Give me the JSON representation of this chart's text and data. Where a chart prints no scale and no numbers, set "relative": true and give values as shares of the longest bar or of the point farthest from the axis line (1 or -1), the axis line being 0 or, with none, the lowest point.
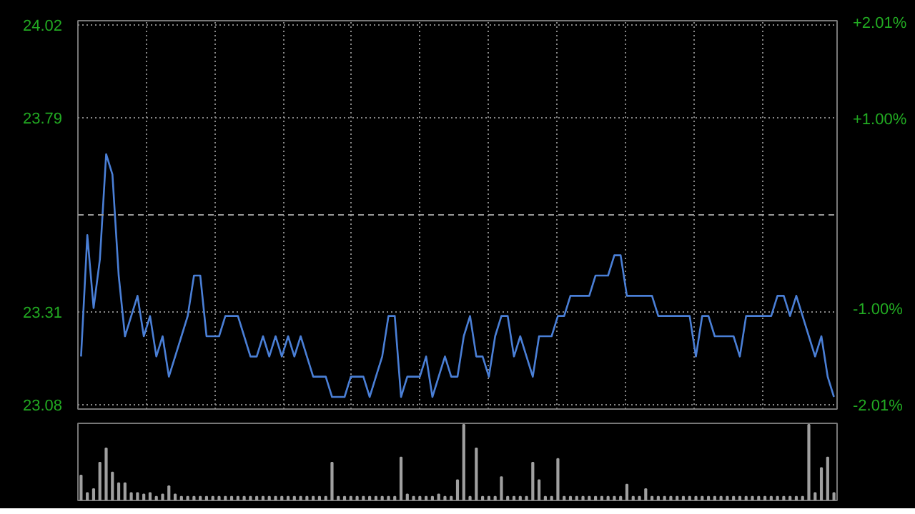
{
  "chart_data": [
    {
      "type": "line",
      "categories": [
        null,
        null,
        null,
        null,
        null,
        null,
        null,
        null,
        null,
        null,
        null,
        null,
        null,
        null,
        null,
        null,
        null,
        null,
        null,
        null,
        null,
        null,
        null,
        null,
        null,
        null,
        null,
        null,
        null,
        null,
        null,
        null,
        null,
        null,
        null,
        null,
        null,
        null,
        null,
        null,
        null,
        null,
        null,
        null,
        null,
        null,
        null,
        null,
        null,
        null,
        null,
        null,
        null,
        null,
        null,
        null,
        null,
        null,
        null,
        null,
        null,
        null,
        null,
        null,
        null,
        null,
        null,
        null,
        null,
        null,
        null,
        null,
        null,
        null,
        null,
        null,
        null,
        null,
        null,
        null,
        null,
        null,
        null,
        null,
        null,
        null,
        null,
        null,
        null,
        null,
        null,
        null,
        null,
        null,
        null,
        null,
        null,
        null,
        null,
        null,
        null,
        null,
        null,
        null,
        null,
        null,
        null,
        null,
        null,
        null,
        null,
        null,
        null,
        null,
        null,
        null,
        null,
        null,
        null,
        null,
        null
      ],
      "series": [
        {
          "color": "#4a7fd6",
          "values": [
            23.2,
            23.5,
            23.32,
            23.44,
            23.7,
            23.65,
            23.4,
            23.25,
            23.3,
            23.35,
            23.25,
            23.3,
            23.2,
            23.25,
            23.15,
            23.2,
            23.25,
            23.3,
            23.4,
            23.4,
            23.25,
            23.25,
            23.25,
            23.3,
            23.3,
            23.3,
            23.25,
            23.2,
            23.2,
            23.25,
            23.2,
            23.25,
            23.2,
            23.25,
            23.2,
            23.25,
            23.2,
            23.15,
            23.15,
            23.15,
            23.1,
            23.1,
            23.1,
            23.15,
            23.15,
            23.15,
            23.1,
            23.15,
            23.2,
            23.3,
            23.3,
            23.1,
            23.15,
            23.15,
            23.15,
            23.2,
            23.1,
            23.15,
            23.2,
            23.15,
            23.15,
            23.25,
            23.3,
            23.2,
            23.2,
            23.15,
            23.25,
            23.3,
            23.3,
            23.2,
            23.25,
            23.2,
            23.15,
            23.25,
            23.25,
            23.25,
            23.3,
            23.3,
            23.35,
            23.35,
            23.35,
            23.35,
            23.4,
            23.4,
            23.4,
            23.45,
            23.45,
            23.35,
            23.35,
            23.35,
            23.35,
            23.35,
            23.3,
            23.3,
            23.3,
            23.3,
            23.3,
            23.3,
            23.2,
            23.3,
            23.3,
            23.25,
            23.25,
            23.25,
            23.25,
            23.2,
            23.3,
            23.3,
            23.3,
            23.3,
            23.3,
            23.35,
            23.35,
            23.3,
            23.35,
            23.3,
            23.25,
            23.2,
            23.25,
            23.15,
            23.1
          ]
        }
      ],
      "ylim": [
        23.07,
        24.03
      ],
      "yticks": [
        23.08,
        23.31,
        23.79,
        24.02
      ],
      "y2lim": [
        -2.04,
        2.04
      ],
      "y2ticks": [
        {
          "value": -2.01,
          "label": "-2.01%"
        },
        {
          "value": -1.0,
          "label": "-1.00%"
        },
        {
          "value": 1.0,
          "label": "+1.00%"
        },
        {
          "value": 2.01,
          "label": "+2.01%"
        }
      ],
      "ref_lines": [
        {
          "axis": "y",
          "value": 23.55,
          "line_style": "dashed",
          "color": "#999999"
        }
      ],
      "grid": true,
      "line_style": "solid",
      "marker": "none"
    },
    {
      "type": "bar",
      "relative": true,
      "color": "#a0a0a0",
      "grid": false,
      "categories": [
        null,
        null,
        null,
        null,
        null,
        null,
        null,
        null,
        null,
        null,
        null,
        null,
        null,
        null,
        null,
        null,
        null,
        null,
        null,
        null,
        null,
        null,
        null,
        null,
        null,
        null,
        null,
        null,
        null,
        null,
        null,
        null,
        null,
        null,
        null,
        null,
        null,
        null,
        null,
        null,
        null,
        null,
        null,
        null,
        null,
        null,
        null,
        null,
        null,
        null,
        null,
        null,
        null,
        null,
        null,
        null,
        null,
        null,
        null,
        null,
        null,
        null,
        null,
        null,
        null,
        null,
        null,
        null,
        null,
        null,
        null,
        null,
        null,
        null,
        null,
        null,
        null,
        null,
        null,
        null,
        null,
        null,
        null,
        null,
        null,
        null,
        null,
        null,
        null,
        null,
        null,
        null,
        null,
        null,
        null,
        null,
        null,
        null,
        null,
        null,
        null,
        null,
        null,
        null,
        null,
        null,
        null,
        null,
        null,
        null,
        null,
        null,
        null,
        null,
        null,
        null,
        null,
        null,
        null,
        null,
        null
      ],
      "values": [
        0.33,
        0.1,
        0.15,
        0.5,
        0.69,
        0.37,
        0.23,
        0.23,
        0.1,
        0.1,
        0.08,
        0.1,
        0.05,
        0.08,
        0.19,
        0.08,
        0.05,
        0.05,
        0.05,
        0.05,
        0.05,
        0.05,
        0.05,
        0.05,
        0.05,
        0.05,
        0.05,
        0.05,
        0.05,
        0.05,
        0.05,
        0.05,
        0.05,
        0.05,
        0.05,
        0.05,
        0.05,
        0.05,
        0.05,
        0.05,
        0.5,
        0.05,
        0.05,
        0.05,
        0.05,
        0.05,
        0.05,
        0.05,
        0.05,
        0.05,
        0.05,
        0.57,
        0.08,
        0.05,
        0.05,
        0.05,
        0.05,
        0.08,
        0.05,
        0.05,
        0.27,
        1.0,
        0.05,
        0.69,
        0.05,
        0.05,
        0.05,
        0.31,
        0.05,
        0.05,
        0.05,
        0.05,
        0.5,
        0.27,
        0.05,
        0.05,
        0.55,
        0.05,
        0.05,
        0.05,
        0.05,
        0.05,
        0.05,
        0.05,
        0.05,
        0.05,
        0.05,
        0.21,
        0.05,
        0.05,
        0.15,
        0.05,
        0.05,
        0.05,
        0.05,
        0.05,
        0.05,
        0.05,
        0.05,
        0.05,
        0.05,
        0.05,
        0.05,
        0.05,
        0.05,
        0.05,
        0.05,
        0.05,
        0.05,
        0.05,
        0.05,
        0.05,
        0.05,
        0.05,
        0.05,
        0.05,
        1.0,
        0.1,
        0.43,
        0.57,
        0.1
      ]
    }
  ]
}
